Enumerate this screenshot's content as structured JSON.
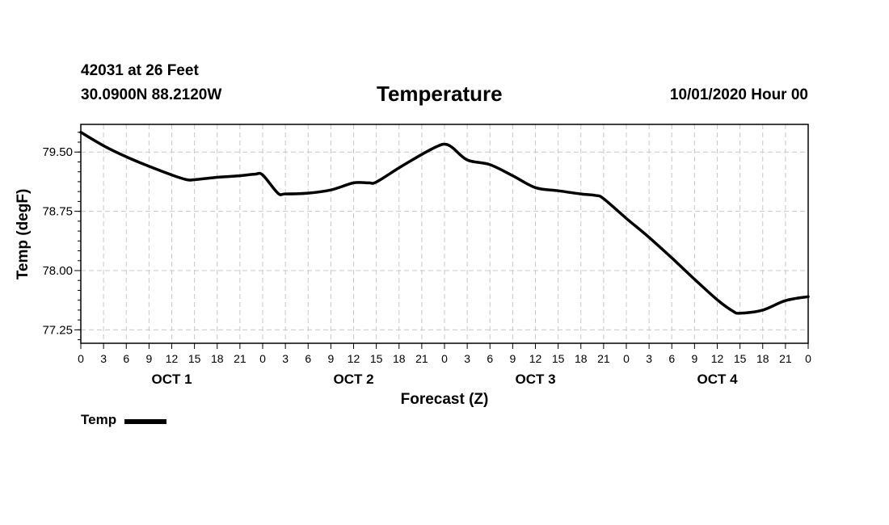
{
  "header": {
    "station": "42031 at 26 Feet",
    "coords": "30.0900N 88.2120W",
    "title": "Temperature",
    "run": "10/01/2020 Hour 00"
  },
  "legend": {
    "label": "Temp"
  },
  "colors": {
    "line": "#000000",
    "grid": "#c8c8c8",
    "frame": "#000000"
  },
  "chart_data": {
    "type": "line",
    "title": "Temperature",
    "xlabel": "Forecast (Z)",
    "ylabel": "Temp (degF)",
    "xlim": [
      0,
      96
    ],
    "ylim": [
      77.08,
      79.85
    ],
    "yticks": [
      77.25,
      78.0,
      78.75,
      79.5
    ],
    "ytick_labels": [
      "77.25",
      "78.00",
      "78.75",
      "79.50"
    ],
    "xtick_step_hours": 3,
    "xtick_labels": [
      "0",
      "3",
      "6",
      "9",
      "12",
      "15",
      "18",
      "21",
      "0",
      "3",
      "6",
      "9",
      "12",
      "15",
      "18",
      "21",
      "0",
      "3",
      "6",
      "9",
      "12",
      "15",
      "18",
      "21",
      "0",
      "3",
      "6",
      "9",
      "12",
      "15",
      "18",
      "21",
      "0"
    ],
    "day_labels": [
      {
        "label": "OCT 1",
        "hour": 12
      },
      {
        "label": "OCT 2",
        "hour": 36
      },
      {
        "label": "OCT 3",
        "hour": 60
      },
      {
        "label": "OCT 4",
        "hour": 84
      }
    ],
    "grid": true,
    "legend_position": "bottom-left",
    "series": [
      {
        "name": "Temp",
        "x": [
          0,
          3,
          6,
          9,
          12,
          14,
          15,
          18,
          21,
          23,
          24,
          26,
          27,
          30,
          33,
          36,
          38,
          39,
          42,
          45,
          47,
          48,
          49,
          51,
          54,
          57,
          60,
          63,
          66,
          68,
          69,
          72,
          75,
          78,
          81,
          84,
          86,
          87,
          90,
          93,
          96
        ],
        "y": [
          79.75,
          79.58,
          79.44,
          79.32,
          79.21,
          79.15,
          79.15,
          79.18,
          79.2,
          79.22,
          79.21,
          78.98,
          78.97,
          78.98,
          79.02,
          79.11,
          79.11,
          79.12,
          79.3,
          79.47,
          79.57,
          79.6,
          79.56,
          79.4,
          79.34,
          79.2,
          79.05,
          79.01,
          78.97,
          78.95,
          78.91,
          78.66,
          78.42,
          78.16,
          77.89,
          77.63,
          77.49,
          77.46,
          77.5,
          77.62,
          77.67
        ]
      }
    ]
  }
}
